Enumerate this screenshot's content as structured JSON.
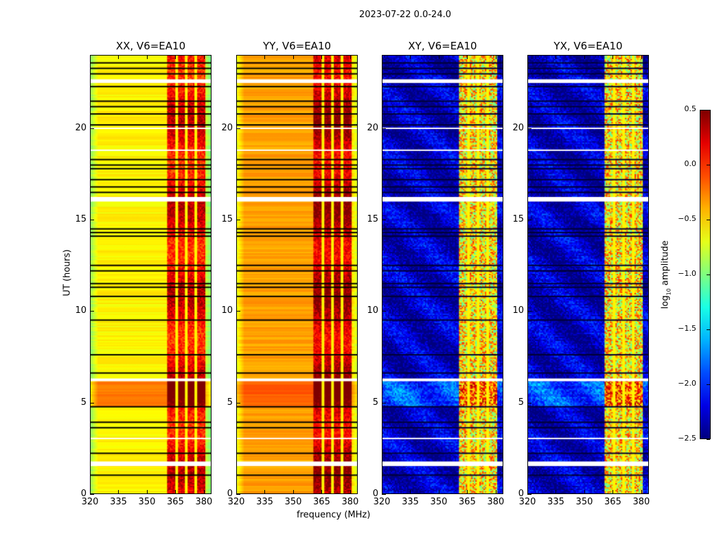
{
  "chart_data": {
    "type": "heatmap",
    "title": "2023-07-22 0.0-24.0",
    "xlabel": "frequency (MHz)",
    "ylabel": "UT (hours)",
    "xlim": [
      320,
      384
    ],
    "ylim": [
      0,
      24
    ],
    "xticks": [
      320,
      335,
      350,
      365,
      380
    ],
    "yticks": [
      0,
      5,
      10,
      15,
      20
    ],
    "colormap": "jet",
    "colorbar": {
      "label_main": "log",
      "label_sub": "10",
      "label_rest": " amplitude",
      "range": [
        -2.5,
        0.5
      ],
      "ticks": [
        "0.5",
        "0.0",
        "−0.5",
        "−1.0",
        "−1.5",
        "−2.0",
        "−2.5"
      ],
      "tick_values": [
        0.5,
        0.0,
        -0.5,
        -1.0,
        -1.5,
        -2.0,
        -2.5
      ]
    },
    "panels": [
      {
        "title": "XX, V6=EA10",
        "base": -0.6,
        "band": 0.15,
        "high_segment": 0.35,
        "cross": false
      },
      {
        "title": "YY, V6=EA10",
        "base": -0.35,
        "band": 0.3,
        "high_segment": 0.2,
        "cross": false
      },
      {
        "title": "XY, V6=EA10",
        "base": -2.3,
        "band": -0.8,
        "high_segment": 0.4,
        "cross": true
      },
      {
        "title": "YX, V6=EA10",
        "base": -2.3,
        "band": -0.8,
        "high_segment": 0.4,
        "cross": true
      }
    ],
    "rfi_band_mhz": [
      361,
      381
    ],
    "rfi_gaps_mhz": [
      366,
      371,
      376
    ],
    "high_segment_hours": [
      4.8,
      6.2
    ],
    "flagged_white_hours": [
      [
        1.5,
        1.75
      ],
      [
        6.15,
        6.3
      ],
      [
        16.0,
        16.25
      ],
      [
        22.5,
        22.7
      ],
      [
        20.0,
        20.05
      ],
      [
        3.0,
        3.05
      ],
      [
        18.8,
        18.85
      ]
    ],
    "flagged_black_hours": [
      1.0,
      2.2,
      3.6,
      3.9,
      4.75,
      6.6,
      7.6,
      9.5,
      10.8,
      11.3,
      11.5,
      12.2,
      12.5,
      14.1,
      14.3,
      14.5,
      16.5,
      16.8,
      17.2,
      17.8,
      18.0,
      18.3,
      20.2,
      20.8,
      21.2,
      21.5,
      22.3,
      23.0,
      23.3,
      23.6
    ]
  }
}
